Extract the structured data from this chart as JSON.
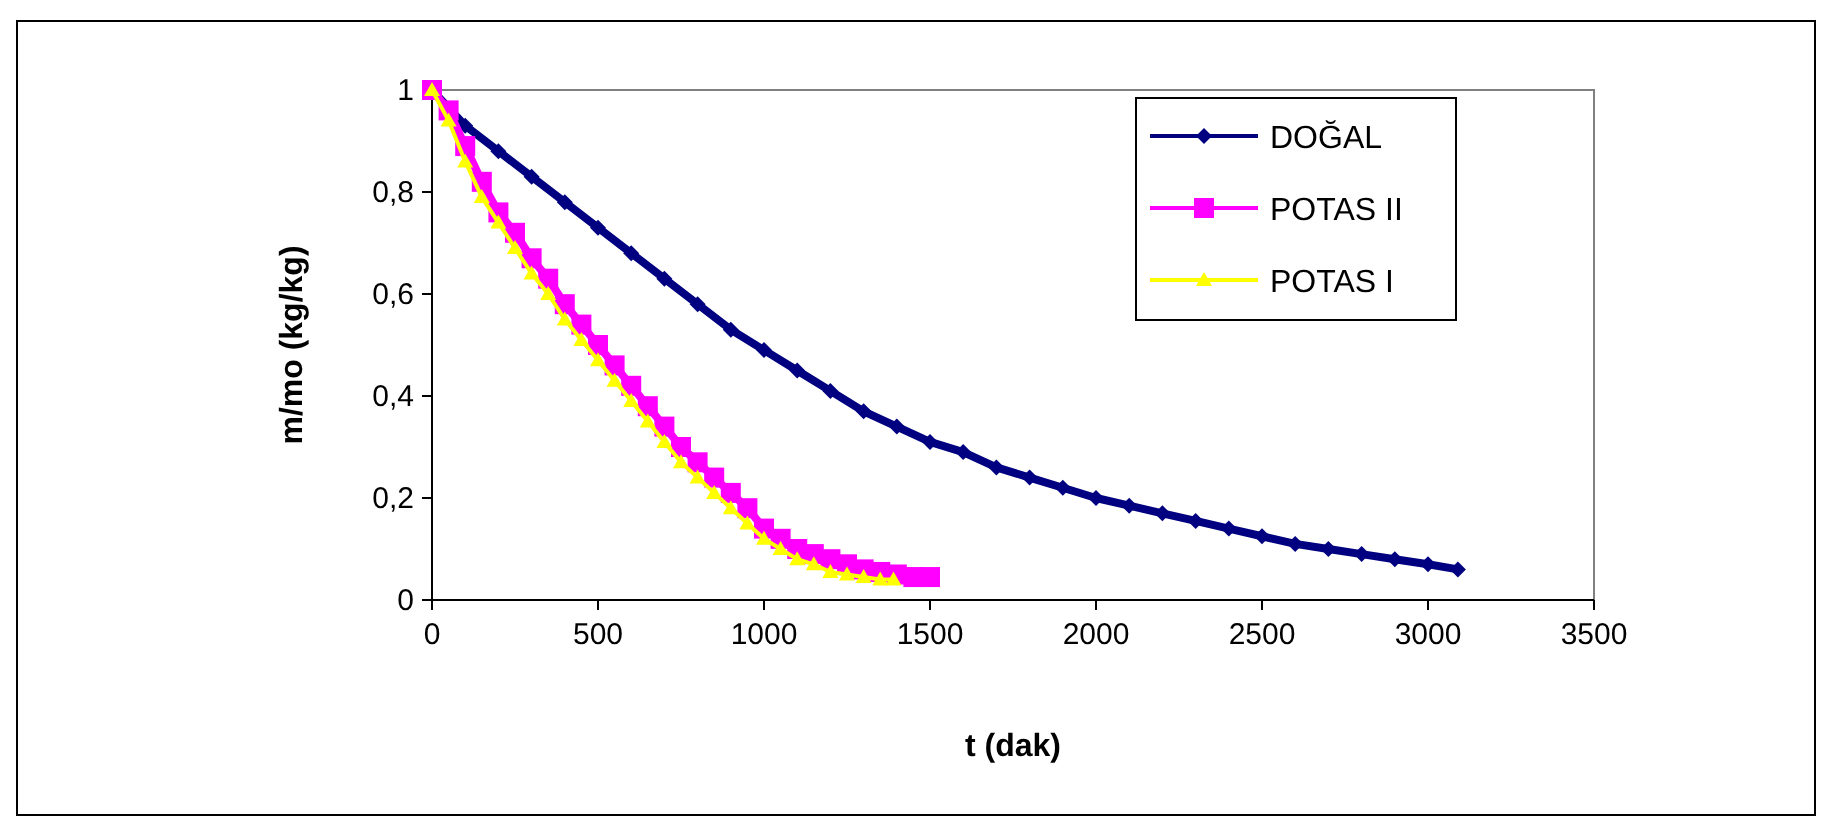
{
  "chart_data": {
    "type": "line",
    "xlabel": "t (dak)",
    "ylabel": "m/mo (kg/kg)",
    "xlim": [
      0,
      3500
    ],
    "xticks": [
      0,
      500,
      1000,
      1500,
      2000,
      2500,
      3000,
      3500
    ],
    "ylim": [
      0,
      1
    ],
    "yticks": [
      0,
      {
        "value": 0.2,
        "label": "0,2"
      },
      {
        "value": 0.4,
        "label": "0,4"
      },
      {
        "value": 0.6,
        "label": "0,6"
      },
      {
        "value": 0.8,
        "label": "0,8"
      },
      1
    ],
    "legend": "top right",
    "grid": false,
    "line_style": "solid",
    "series": [
      {
        "name": "DOĞAL",
        "color": "#000080",
        "marker": "diamond",
        "x": [
          0,
          100,
          200,
          300,
          400,
          500,
          600,
          700,
          800,
          900,
          1000,
          1100,
          1200,
          1300,
          1400,
          1500,
          1600,
          1700,
          1800,
          1900,
          2000,
          2100,
          2200,
          2300,
          2400,
          2500,
          2600,
          2700,
          2800,
          2900,
          3000,
          3090
        ],
        "values": [
          1,
          0.93,
          0.88,
          0.83,
          0.78,
          0.73,
          0.68,
          0.63,
          0.58,
          0.53,
          0.49,
          0.45,
          0.41,
          0.37,
          0.34,
          0.31,
          0.29,
          0.26,
          0.24,
          0.22,
          0.2,
          0.185,
          0.17,
          0.155,
          0.14,
          0.125,
          0.11,
          0.1,
          0.09,
          0.08,
          0.07,
          0.06
        ]
      },
      {
        "name": "POTAS II",
        "color": "#ff00ff",
        "marker": "square",
        "x": [
          0,
          50,
          100,
          150,
          200,
          250,
          300,
          350,
          400,
          450,
          500,
          550,
          600,
          650,
          700,
          750,
          800,
          850,
          900,
          950,
          1000,
          1050,
          1100,
          1150,
          1200,
          1250,
          1300,
          1350,
          1400,
          1450,
          1500
        ],
        "values": [
          1,
          0.96,
          0.89,
          0.82,
          0.76,
          0.72,
          0.67,
          0.63,
          0.58,
          0.54,
          0.5,
          0.46,
          0.42,
          0.38,
          0.34,
          0.3,
          0.27,
          0.24,
          0.21,
          0.18,
          0.14,
          0.12,
          0.1,
          0.09,
          0.08,
          0.07,
          0.06,
          0.055,
          0.05,
          0.045,
          0.045
        ]
      },
      {
        "name": "POTAS I",
        "color": "#ffff00",
        "marker": "triangle",
        "x": [
          0,
          50,
          100,
          150,
          200,
          250,
          300,
          350,
          400,
          450,
          500,
          550,
          600,
          650,
          700,
          750,
          800,
          850,
          900,
          950,
          1000,
          1050,
          1100,
          1150,
          1200,
          1250,
          1300,
          1350,
          1390
        ],
        "values": [
          1,
          0.94,
          0.86,
          0.79,
          0.74,
          0.69,
          0.64,
          0.6,
          0.55,
          0.51,
          0.47,
          0.43,
          0.39,
          0.35,
          0.31,
          0.27,
          0.24,
          0.21,
          0.18,
          0.15,
          0.12,
          0.1,
          0.08,
          0.07,
          0.055,
          0.05,
          0.045,
          0.04,
          0.04
        ]
      }
    ]
  }
}
